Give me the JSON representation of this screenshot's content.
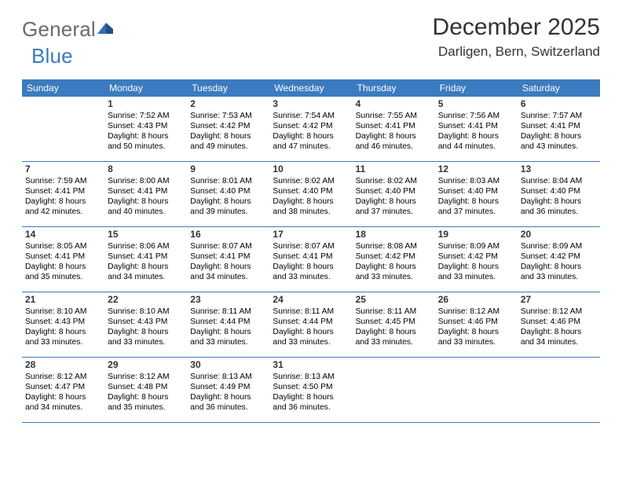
{
  "logo": {
    "text_gen": "General",
    "text_blue": "Blue"
  },
  "title": "December 2025",
  "location": "Darligen, Bern, Switzerland",
  "colors": {
    "header_bg": "#3b7bbf",
    "header_text": "#ffffff",
    "rule": "#3b7bbf",
    "logo_gray": "#6a6a6a",
    "logo_blue": "#3b7bbf",
    "body_text": "#000000",
    "page_bg": "#ffffff"
  },
  "days_of_week": [
    "Sunday",
    "Monday",
    "Tuesday",
    "Wednesday",
    "Thursday",
    "Friday",
    "Saturday"
  ],
  "weeks": [
    [
      null,
      {
        "n": "1",
        "sr": "7:52 AM",
        "ss": "4:43 PM",
        "dl": "8 hours and 50 minutes."
      },
      {
        "n": "2",
        "sr": "7:53 AM",
        "ss": "4:42 PM",
        "dl": "8 hours and 49 minutes."
      },
      {
        "n": "3",
        "sr": "7:54 AM",
        "ss": "4:42 PM",
        "dl": "8 hours and 47 minutes."
      },
      {
        "n": "4",
        "sr": "7:55 AM",
        "ss": "4:41 PM",
        "dl": "8 hours and 46 minutes."
      },
      {
        "n": "5",
        "sr": "7:56 AM",
        "ss": "4:41 PM",
        "dl": "8 hours and 44 minutes."
      },
      {
        "n": "6",
        "sr": "7:57 AM",
        "ss": "4:41 PM",
        "dl": "8 hours and 43 minutes."
      }
    ],
    [
      {
        "n": "7",
        "sr": "7:59 AM",
        "ss": "4:41 PM",
        "dl": "8 hours and 42 minutes."
      },
      {
        "n": "8",
        "sr": "8:00 AM",
        "ss": "4:41 PM",
        "dl": "8 hours and 40 minutes."
      },
      {
        "n": "9",
        "sr": "8:01 AM",
        "ss": "4:40 PM",
        "dl": "8 hours and 39 minutes."
      },
      {
        "n": "10",
        "sr": "8:02 AM",
        "ss": "4:40 PM",
        "dl": "8 hours and 38 minutes."
      },
      {
        "n": "11",
        "sr": "8:02 AM",
        "ss": "4:40 PM",
        "dl": "8 hours and 37 minutes."
      },
      {
        "n": "12",
        "sr": "8:03 AM",
        "ss": "4:40 PM",
        "dl": "8 hours and 37 minutes."
      },
      {
        "n": "13",
        "sr": "8:04 AM",
        "ss": "4:40 PM",
        "dl": "8 hours and 36 minutes."
      }
    ],
    [
      {
        "n": "14",
        "sr": "8:05 AM",
        "ss": "4:41 PM",
        "dl": "8 hours and 35 minutes."
      },
      {
        "n": "15",
        "sr": "8:06 AM",
        "ss": "4:41 PM",
        "dl": "8 hours and 34 minutes."
      },
      {
        "n": "16",
        "sr": "8:07 AM",
        "ss": "4:41 PM",
        "dl": "8 hours and 34 minutes."
      },
      {
        "n": "17",
        "sr": "8:07 AM",
        "ss": "4:41 PM",
        "dl": "8 hours and 33 minutes."
      },
      {
        "n": "18",
        "sr": "8:08 AM",
        "ss": "4:42 PM",
        "dl": "8 hours and 33 minutes."
      },
      {
        "n": "19",
        "sr": "8:09 AM",
        "ss": "4:42 PM",
        "dl": "8 hours and 33 minutes."
      },
      {
        "n": "20",
        "sr": "8:09 AM",
        "ss": "4:42 PM",
        "dl": "8 hours and 33 minutes."
      }
    ],
    [
      {
        "n": "21",
        "sr": "8:10 AM",
        "ss": "4:43 PM",
        "dl": "8 hours and 33 minutes."
      },
      {
        "n": "22",
        "sr": "8:10 AM",
        "ss": "4:43 PM",
        "dl": "8 hours and 33 minutes."
      },
      {
        "n": "23",
        "sr": "8:11 AM",
        "ss": "4:44 PM",
        "dl": "8 hours and 33 minutes."
      },
      {
        "n": "24",
        "sr": "8:11 AM",
        "ss": "4:44 PM",
        "dl": "8 hours and 33 minutes."
      },
      {
        "n": "25",
        "sr": "8:11 AM",
        "ss": "4:45 PM",
        "dl": "8 hours and 33 minutes."
      },
      {
        "n": "26",
        "sr": "8:12 AM",
        "ss": "4:46 PM",
        "dl": "8 hours and 33 minutes."
      },
      {
        "n": "27",
        "sr": "8:12 AM",
        "ss": "4:46 PM",
        "dl": "8 hours and 34 minutes."
      }
    ],
    [
      {
        "n": "28",
        "sr": "8:12 AM",
        "ss": "4:47 PM",
        "dl": "8 hours and 34 minutes."
      },
      {
        "n": "29",
        "sr": "8:12 AM",
        "ss": "4:48 PM",
        "dl": "8 hours and 35 minutes."
      },
      {
        "n": "30",
        "sr": "8:13 AM",
        "ss": "4:49 PM",
        "dl": "8 hours and 36 minutes."
      },
      {
        "n": "31",
        "sr": "8:13 AM",
        "ss": "4:50 PM",
        "dl": "8 hours and 36 minutes."
      },
      null,
      null,
      null
    ]
  ],
  "labels": {
    "sunrise": "Sunrise:",
    "sunset": "Sunset:",
    "daylight": "Daylight:"
  }
}
